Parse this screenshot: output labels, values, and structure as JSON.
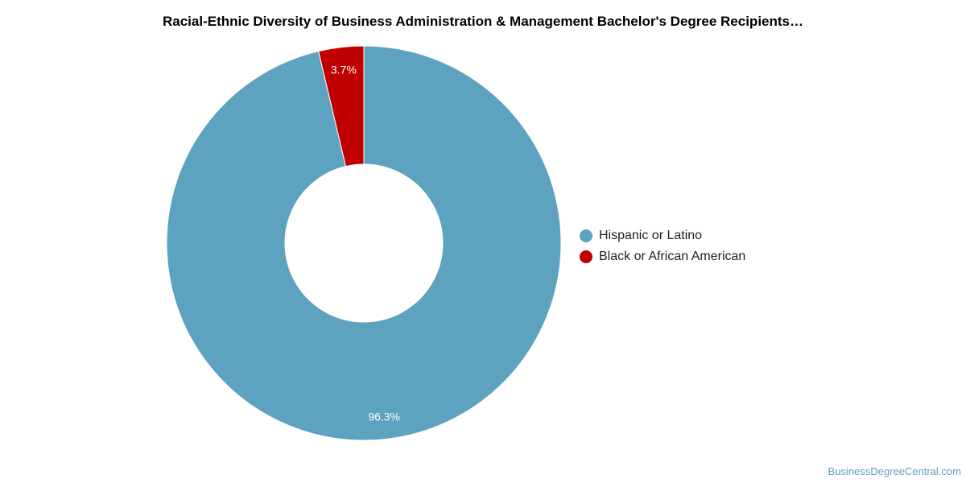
{
  "chart_data": {
    "type": "pie",
    "title": "Racial-Ethnic Diversity of Business Administration & Management Bachelor's Degree Recipients…",
    "donut": true,
    "slices": [
      {
        "label": "Black or African American",
        "value": 3.7,
        "display": "3.7%",
        "color": "#c00000"
      },
      {
        "label": "Hispanic or Latino",
        "value": 96.3,
        "display": "96.3%",
        "color": "#5da2bf"
      }
    ],
    "legend": {
      "placement": "right",
      "entries": [
        {
          "label": "Hispanic or Latino",
          "color": "#5da2bf"
        },
        {
          "label": "Black or African American",
          "color": "#c00000"
        }
      ]
    }
  },
  "watermark": "BusinessDegreeCentral.com"
}
